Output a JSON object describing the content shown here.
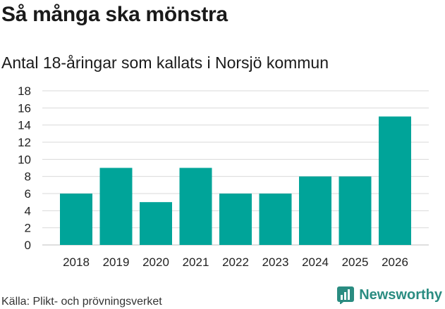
{
  "header": {
    "title": "Så många ska mönstra",
    "subtitle": "Antal 18-åringar som kallats i Norsjö kommun"
  },
  "footer": {
    "source": "Källa: Plikt- och prövningsverket",
    "brand": "Newsworthy",
    "brand_icon": "bar-chart-logo-icon"
  },
  "colors": {
    "bar": "#00a499",
    "grid": "#d9d9d9",
    "brand": "#2a8c81"
  },
  "chart_data": {
    "type": "bar",
    "title": "Så många ska mönstra",
    "subtitle": "Antal 18-åringar som kallats i Norsjö kommun",
    "categories": [
      "2018",
      "2019",
      "2020",
      "2021",
      "2022",
      "2023",
      "2024",
      "2025",
      "2026"
    ],
    "values": [
      6,
      9,
      5,
      9,
      6,
      6,
      8,
      8,
      15
    ],
    "yticks": [
      "0",
      "2",
      "4",
      "6",
      "8",
      "10",
      "12",
      "14",
      "16",
      "18"
    ],
    "ylim": [
      0,
      18
    ],
    "xlabel": "",
    "ylabel": "",
    "grid": true,
    "legend": "none"
  }
}
